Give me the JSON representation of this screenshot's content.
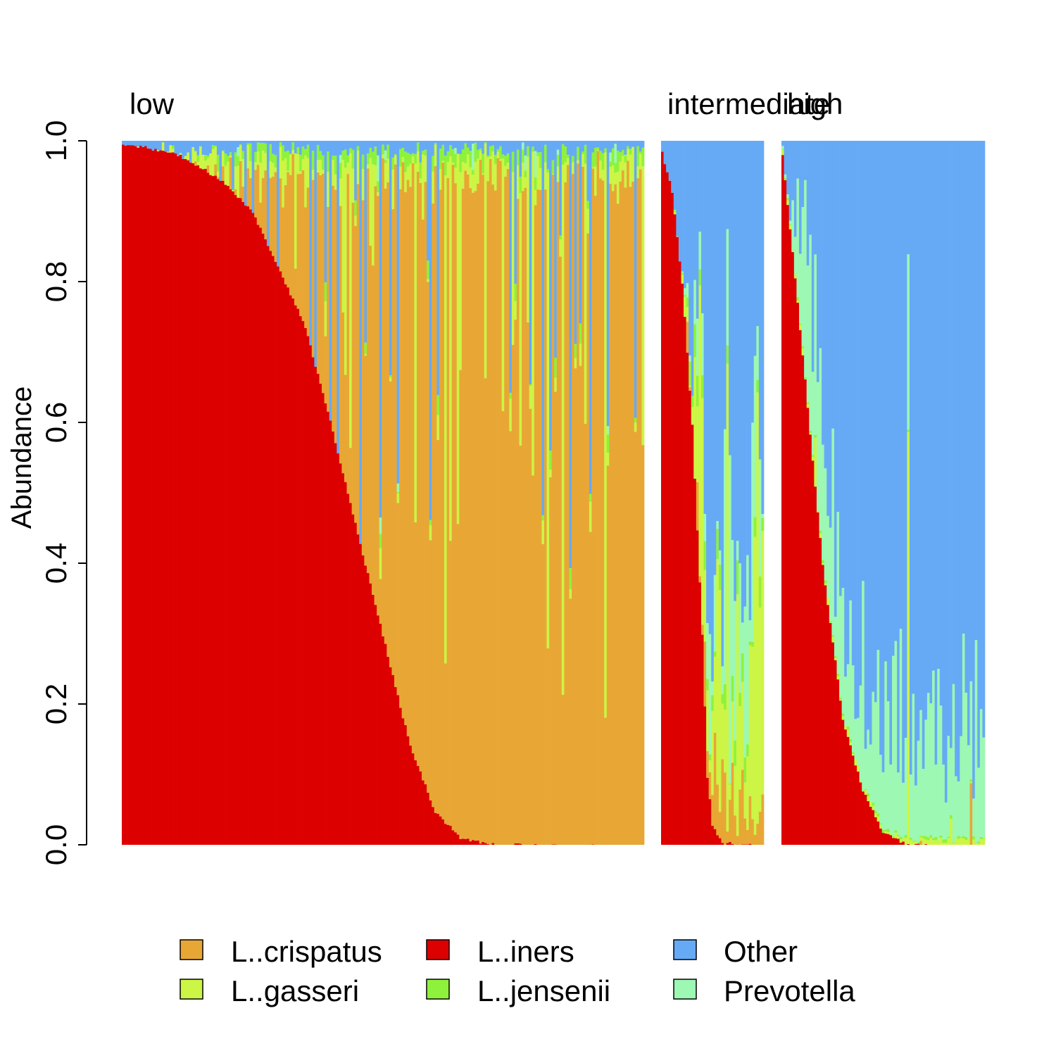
{
  "chart_data": {
    "type": "bar",
    "stacked": true,
    "ylabel": "Abundance",
    "ylim": [
      0,
      1
    ],
    "yticks": [
      "0.0",
      "0.2",
      "0.4",
      "0.6",
      "0.8",
      "1.0"
    ],
    "panels": [
      {
        "name": "low",
        "label": "low",
        "n_samples": 209,
        "profile": "crispatus_dominant"
      },
      {
        "name": "intermediate",
        "label": "intermediate",
        "n_samples": 41,
        "profile": "mixed"
      },
      {
        "name": "high",
        "label": "high",
        "n_samples": 81,
        "profile": "diverse"
      }
    ],
    "series": [
      {
        "name": "L..iners",
        "color": "#dd0000"
      },
      {
        "name": "L..crispatus",
        "color": "#e8a735"
      },
      {
        "name": "L..gasseri",
        "color": "#ccf545"
      },
      {
        "name": "L..jensenii",
        "color": "#8ef23c"
      },
      {
        "name": "Prevotella",
        "color": "#9cf8b3"
      },
      {
        "name": "Other",
        "color": "#66aaf5"
      }
    ],
    "legend": {
      "position": "bottom",
      "entries": [
        {
          "label": "L..crispatus",
          "color": "#e8a735"
        },
        {
          "label": "L..iners",
          "color": "#dd0000"
        },
        {
          "label": "Other",
          "color": "#66aaf5"
        },
        {
          "label": "L..gasseri",
          "color": "#ccf545"
        },
        {
          "label": "L..jensenii",
          "color": "#8ef23c"
        },
        {
          "label": "Prevotella",
          "color": "#9cf8b3"
        }
      ]
    },
    "iners_curve_low": [
      [
        0,
        0.998
      ],
      [
        0.04,
        0.993
      ],
      [
        0.1,
        0.985
      ],
      [
        0.15,
        0.965
      ],
      [
        0.2,
        0.94
      ],
      [
        0.25,
        0.9
      ],
      [
        0.3,
        0.82
      ],
      [
        0.35,
        0.74
      ],
      [
        0.4,
        0.6
      ],
      [
        0.45,
        0.45
      ],
      [
        0.5,
        0.3
      ],
      [
        0.55,
        0.15
      ],
      [
        0.6,
        0.05
      ],
      [
        0.65,
        0.012
      ],
      [
        0.7,
        0.004
      ],
      [
        0.8,
        0.001
      ],
      [
        1.0,
        0.0
      ]
    ],
    "iners_curve_intermediate": [
      [
        0,
        0.985
      ],
      [
        0.1,
        0.93
      ],
      [
        0.2,
        0.8
      ],
      [
        0.3,
        0.6
      ],
      [
        0.4,
        0.3
      ],
      [
        0.45,
        0.1
      ],
      [
        0.5,
        0.03
      ],
      [
        0.6,
        0.005
      ],
      [
        1.0,
        0.0
      ]
    ],
    "iners_curve_high": [
      [
        0,
        0.98
      ],
      [
        0.03,
        0.9
      ],
      [
        0.1,
        0.7
      ],
      [
        0.2,
        0.4
      ],
      [
        0.3,
        0.18
      ],
      [
        0.4,
        0.08
      ],
      [
        0.5,
        0.02
      ],
      [
        0.6,
        0.005
      ],
      [
        0.7,
        0.001
      ],
      [
        1.0,
        0.0
      ]
    ]
  }
}
